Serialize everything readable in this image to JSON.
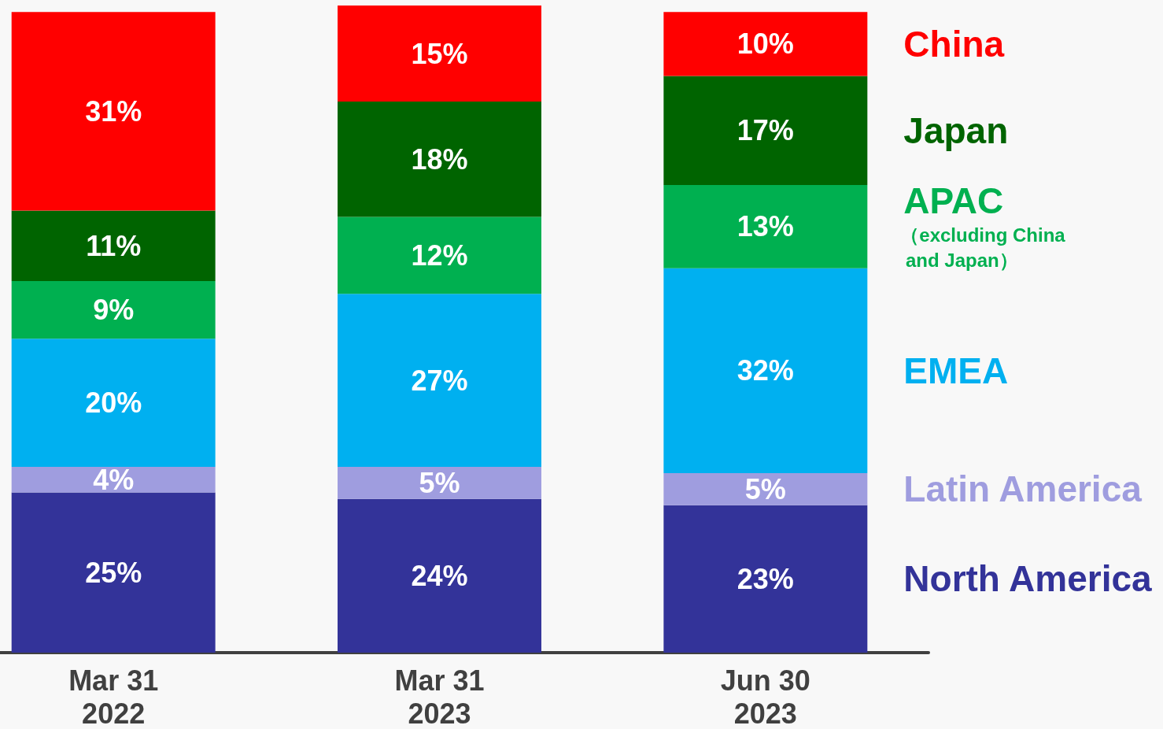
{
  "chart_data": {
    "type": "bar",
    "stacked": true,
    "categories": [
      "Mar 31\n2022",
      "Mar 31\n2023",
      "Jun 30\n2023"
    ],
    "series": [
      {
        "name": "North America",
        "color": "#333399",
        "values": [
          25,
          24,
          23
        ],
        "value_labels": [
          "25%",
          "24%",
          "23%"
        ]
      },
      {
        "name": "Latin America",
        "color": "#9f9ddf",
        "values": [
          4,
          5,
          5
        ],
        "value_labels": [
          "4%",
          "5%",
          "5%"
        ]
      },
      {
        "name": "EMEA",
        "color": "#00b0f0",
        "values": [
          20,
          27,
          32
        ],
        "value_labels": [
          "20%",
          "27%",
          "32%"
        ]
      },
      {
        "name": "APAC",
        "color": "#00b050",
        "values": [
          9,
          12,
          13
        ],
        "value_labels": [
          "9%",
          "12%",
          "13%"
        ]
      },
      {
        "name": "Japan",
        "color": "#006400",
        "values": [
          11,
          18,
          17
        ],
        "value_labels": [
          "11%",
          "18%",
          "17%"
        ]
      },
      {
        "name": "China",
        "color": "#ff0000",
        "values": [
          31,
          15,
          10
        ],
        "value_labels": [
          "31%",
          "15%",
          "10%"
        ]
      }
    ],
    "legend": "right",
    "annotations": [
      "（excluding China\n and Japan）"
    ]
  }
}
